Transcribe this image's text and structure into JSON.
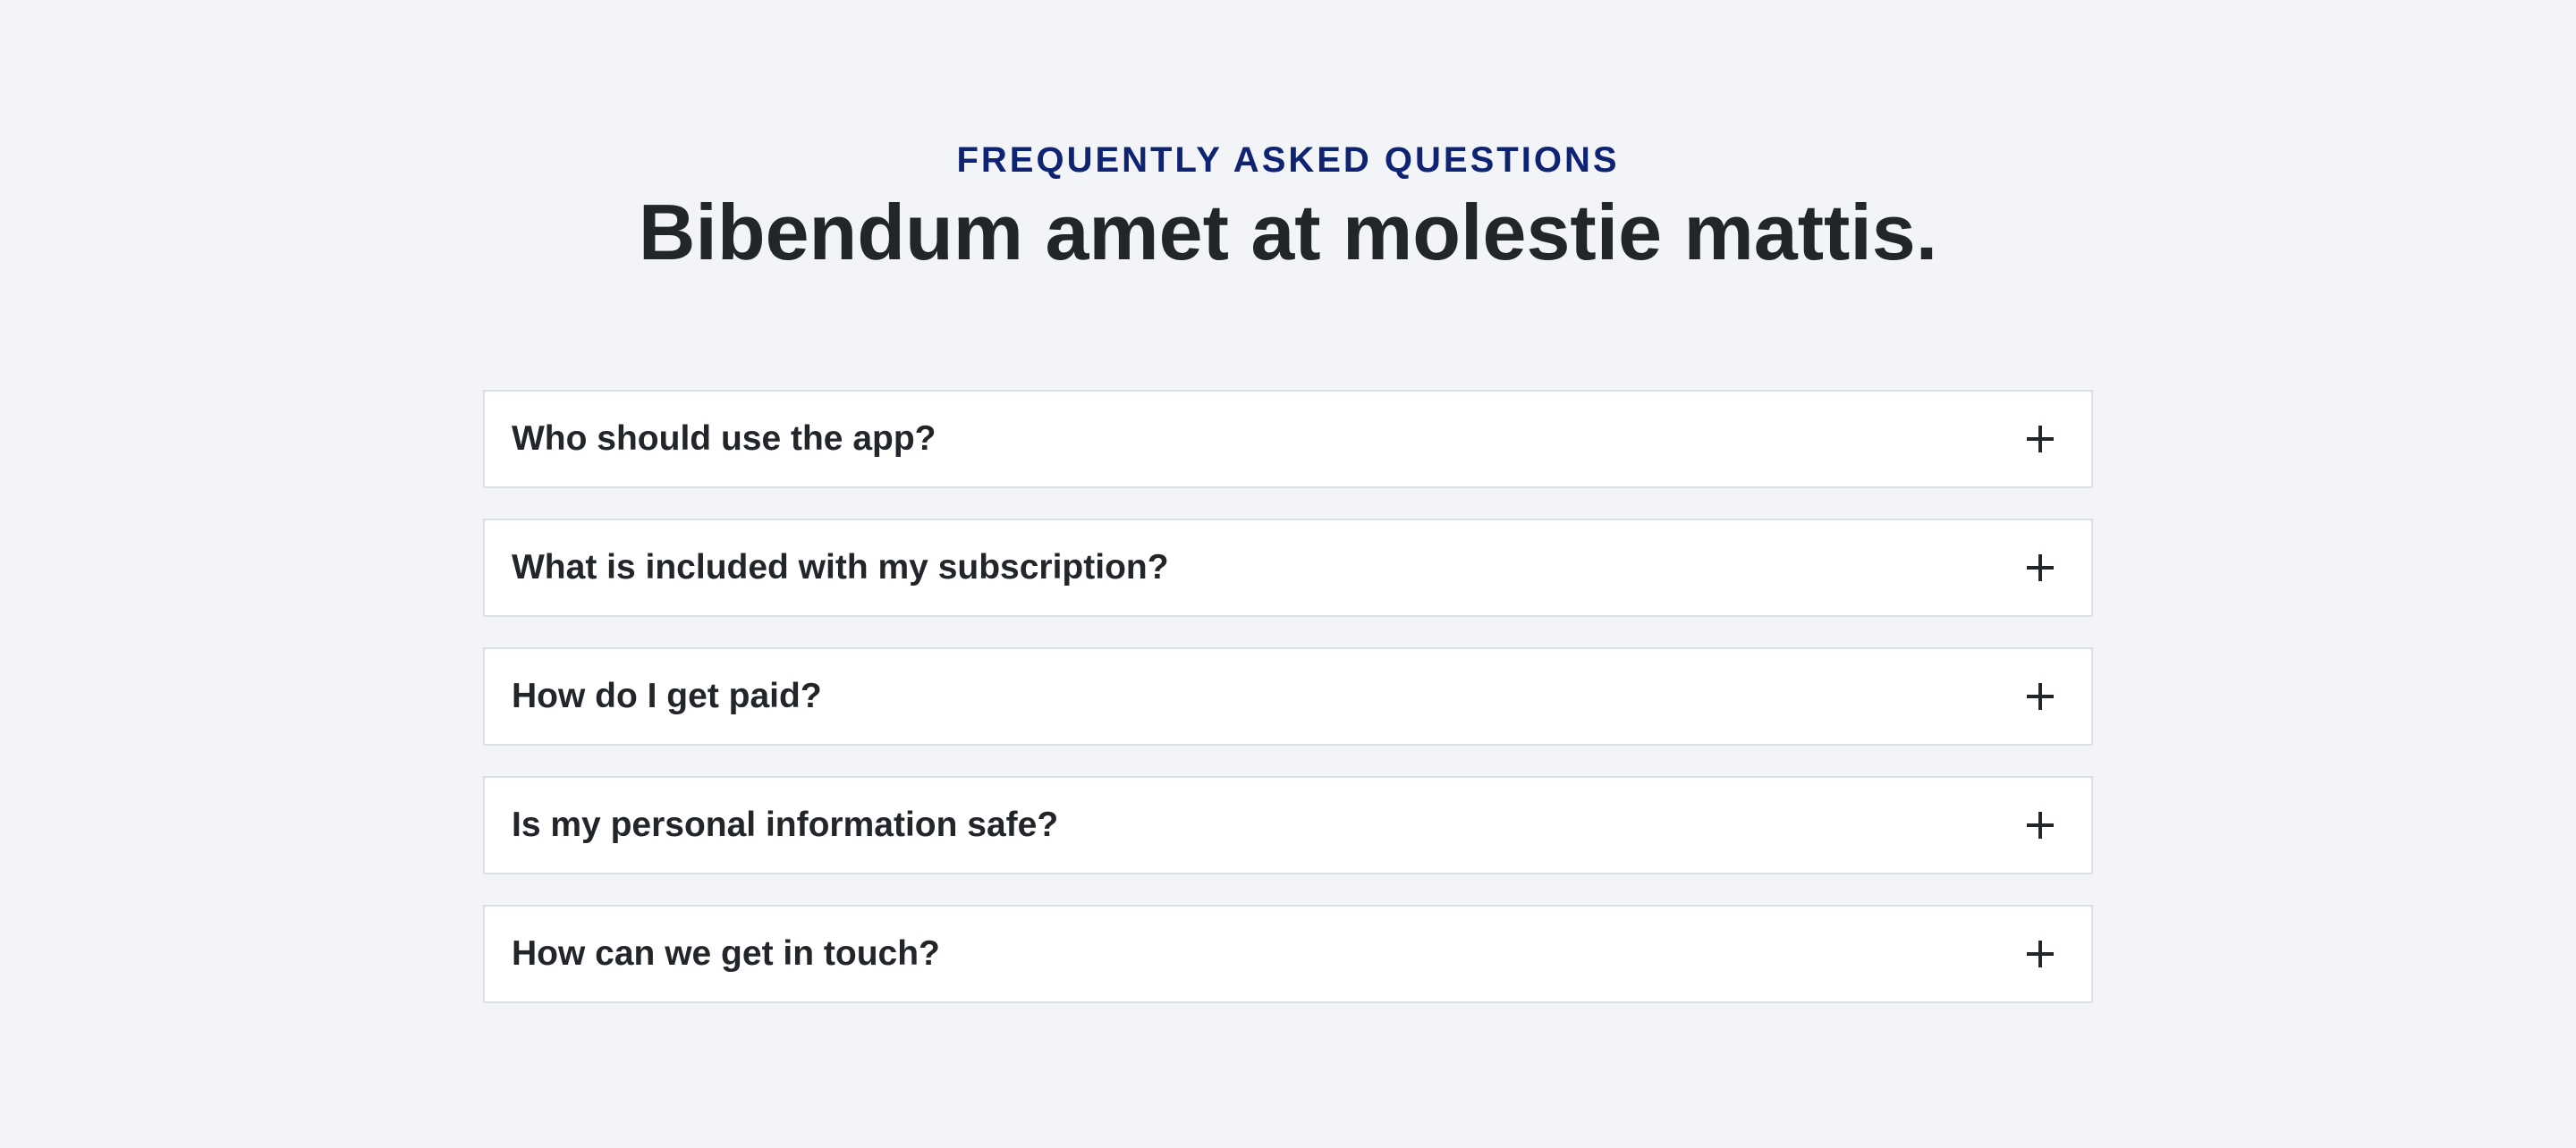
{
  "header": {
    "eyebrow": "FREQUENTLY ASKED QUESTIONS",
    "title": "Bibendum amet at molestie mattis."
  },
  "faq": {
    "items": [
      {
        "question": "Who should use the app?",
        "icon": "plus-icon"
      },
      {
        "question": "What is included with my subscription?",
        "icon": "plus-icon"
      },
      {
        "question": "How do I get paid?",
        "icon": "plus-icon"
      },
      {
        "question": "Is my personal information safe?",
        "icon": "plus-icon"
      },
      {
        "question": "How can we get in touch?",
        "icon": "plus-icon"
      }
    ]
  },
  "colors": {
    "background": "#f3f4f7",
    "eyebrow": "#0f2373",
    "text": "#22262a",
    "card": "#ffffff",
    "card_border": "#dcdfe4"
  }
}
